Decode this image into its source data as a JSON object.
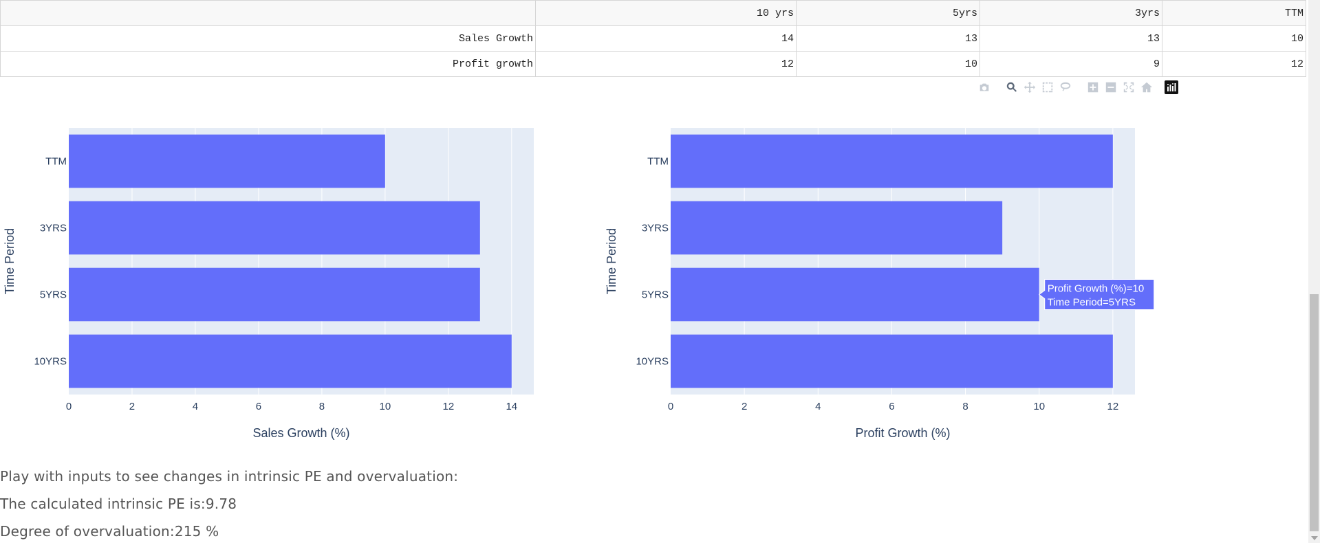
{
  "table": {
    "headers": [
      "",
      "10 yrs",
      "5yrs",
      "3yrs",
      "TTM"
    ],
    "rows": [
      {
        "label": "Sales Growth",
        "values": [
          "14",
          "13",
          "13",
          "10"
        ]
      },
      {
        "label": "Profit growth",
        "values": [
          "12",
          "10",
          "9",
          "12"
        ]
      }
    ]
  },
  "modebar": {
    "icons": [
      "camera-icon",
      "zoom-icon",
      "pan-icon",
      "box-select-icon",
      "lasso-select-icon",
      "zoom-in-icon",
      "zoom-out-icon",
      "autoscale-icon",
      "reset-axes-icon",
      "plotly-logo-icon"
    ]
  },
  "chart_data": [
    {
      "type": "bar",
      "orientation": "horizontal",
      "categories": [
        "10YRS",
        "5YRS",
        "3YRS",
        "TTM"
      ],
      "values": [
        14,
        13,
        13,
        10
      ],
      "xlabel": "Sales Growth (%)",
      "ylabel": "Time Period",
      "xlim": [
        0,
        14.7
      ],
      "xticks": [
        0,
        2,
        4,
        6,
        8,
        10,
        12,
        14
      ],
      "grid": true,
      "bar_color": "#636efa",
      "plot_bg": "#e5ecf6"
    },
    {
      "type": "bar",
      "orientation": "horizontal",
      "categories": [
        "10YRS",
        "5YRS",
        "3YRS",
        "TTM"
      ],
      "values": [
        12,
        10,
        9,
        12
      ],
      "xlabel": "Profit Growth (%)",
      "ylabel": "Time Period",
      "xlim": [
        0,
        12.6
      ],
      "xticks": [
        0,
        2,
        4,
        6,
        8,
        10,
        12
      ],
      "grid": true,
      "bar_color": "#636efa",
      "plot_bg": "#e5ecf6",
      "tooltip": {
        "category": "5YRS",
        "line1": "Profit Growth (%)=10",
        "line2": "Time Period=5YRS"
      }
    }
  ],
  "info": {
    "prompt": "Play with inputs to see changes in intrinsic PE and overvaluation:",
    "intrinsic_pe": "The calculated intrinsic PE is:9.78",
    "overvaluation": "Degree of overvaluation:215 %"
  }
}
